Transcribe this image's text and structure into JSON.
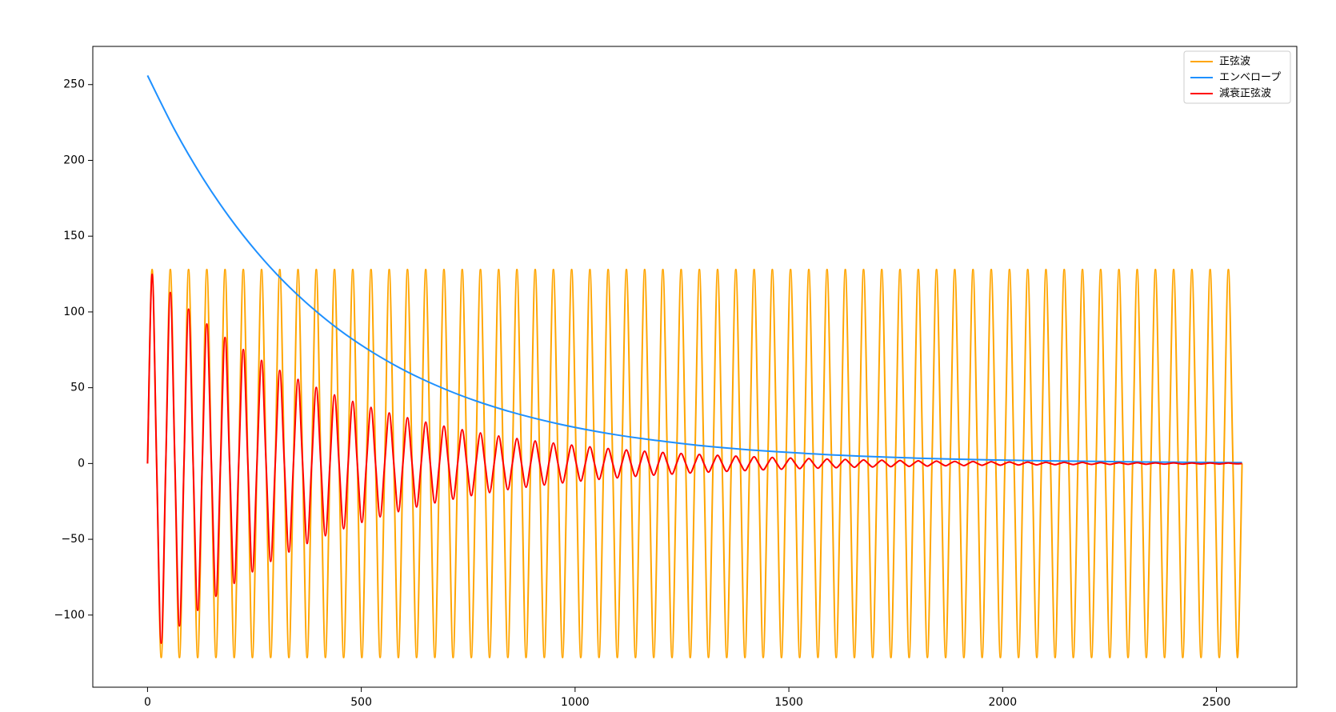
{
  "chart_data": {
    "type": "line",
    "xlim": [
      -128,
      2688
    ],
    "ylim": [
      -147.6,
      275.2
    ],
    "xticks": [
      0,
      500,
      1000,
      1500,
      2000,
      2500
    ],
    "yticks": [
      {
        "value": -100,
        "label": "−100"
      },
      {
        "value": -50,
        "label": "−50"
      },
      0,
      50,
      100,
      150,
      200,
      250
    ],
    "legend": "upper right",
    "series": [
      {
        "name": "正弦波",
        "color": "#ffa500",
        "x": [
          0,
          10.7,
          21.3,
          32,
          42.7,
          53.3,
          64,
          74.7,
          85.3,
          96,
          106.7,
          117.3,
          128,
          138.7,
          149.3,
          160,
          170.7,
          181.3,
          192,
          202.7,
          213.3,
          224,
          234.7,
          245.3,
          256,
          266.7,
          277.3,
          288,
          298.7,
          309.3,
          320,
          330.7,
          341.3,
          352,
          362.7,
          373.3,
          384,
          394.7,
          405.3,
          416,
          426.7,
          437.3,
          448,
          458.7,
          469.3,
          480,
          490.7,
          501.3,
          512,
          522.7,
          533.3,
          544,
          554.7,
          565.3,
          576,
          586.7,
          597.3,
          608,
          618.7,
          629.3,
          640,
          650.7,
          661.3,
          672,
          682.7,
          693.3,
          704,
          714.7,
          725.3,
          736,
          746.7,
          757.3,
          768,
          778.7,
          789.3,
          800,
          810.7,
          821.3,
          832,
          842.7,
          853.3,
          864,
          874.7,
          885.3,
          896,
          906.7,
          917.3,
          928,
          938.7,
          949.3,
          960,
          970.7,
          981.3,
          992,
          1002.7,
          1013.3,
          1024,
          1034.7,
          1045.3,
          1056,
          1066.7,
          1077.3,
          1088,
          1098.7,
          1109.3,
          1120,
          1130.7,
          1141.3,
          1152,
          1162.7,
          1173.3,
          1184,
          1194.7,
          1205.3,
          1216,
          1226.7,
          1237.3,
          1248,
          1258.7,
          1269.3,
          1280,
          1290.7,
          1301.3,
          1312,
          1322.7,
          1333.3,
          1344,
          1354.7,
          1365.3,
          1376,
          1386.7,
          1397.3,
          1408,
          1418.7,
          1429.3,
          1440,
          1450.7,
          1461.3,
          1472,
          1482.7,
          1493.3,
          1504,
          1514.7,
          1525.3,
          1536,
          1546.7,
          1557.3,
          1568,
          1578.7,
          1589.3,
          1600,
          1610.7,
          1621.3,
          1632,
          1642.7,
          1653.3,
          1664,
          1674.7,
          1685.3,
          1696,
          1706.7,
          1717.3,
          1728,
          1738.7,
          1749.3,
          1760,
          1770.7,
          1781.3,
          1792,
          1802.7,
          1813.3,
          1824,
          1834.7,
          1845.3,
          1856,
          1866.7,
          1877.3,
          1888,
          1898.7,
          1909.3,
          1920,
          1930.7,
          1941.3,
          1952,
          1962.7,
          1973.3,
          1984,
          1994.7,
          2005.3,
          2016,
          2026.7,
          2037.3,
          2048,
          2058.7,
          2069.3,
          2080,
          2090.7,
          2101.3,
          2112,
          2122.7,
          2133.3,
          2144,
          2154.7,
          2165.3,
          2176,
          2186.7,
          2197.3,
          2208,
          2218.7,
          2229.3,
          2240,
          2250.7,
          2261.3,
          2272,
          2282.7,
          2293.3,
          2304,
          2314.7,
          2325.3,
          2336,
          2346.7,
          2357.3,
          2368,
          2378.7,
          2389.3,
          2400,
          2410.7,
          2421.3,
          2432,
          2442.7,
          2453.3,
          2464,
          2474.7,
          2485.3,
          2496,
          2506.7,
          2517.3,
          2528,
          2538.7,
          2549.3,
          2560
        ],
        "values": [
          0,
          128,
          0,
          -128,
          0,
          128,
          0,
          -128,
          0,
          128,
          0,
          -128,
          0,
          128,
          0,
          -128,
          0,
          128,
          0,
          -128,
          0,
          128,
          0,
          -128,
          0,
          128,
          0,
          -128,
          0,
          128,
          0,
          -128,
          0,
          128,
          0,
          -128,
          0,
          128,
          0,
          -128,
          0,
          128,
          0,
          -128,
          0,
          128,
          0,
          -128,
          0,
          128,
          0,
          -128,
          0,
          128,
          0,
          -128,
          0,
          128,
          0,
          -128,
          0,
          128,
          0,
          -128,
          0,
          128,
          0,
          -128,
          0,
          128,
          0,
          -128,
          0,
          128,
          0,
          -128,
          0,
          128,
          0,
          -128,
          0,
          128,
          0,
          -128,
          0,
          128,
          0,
          -128,
          0,
          128,
          0,
          -128,
          0,
          128,
          0,
          -128,
          0,
          128,
          0,
          -128,
          0,
          128,
          0,
          -128,
          0,
          128,
          0,
          -128,
          0,
          128,
          0,
          -128,
          0,
          128,
          0,
          -128,
          0,
          128,
          0,
          -128,
          0,
          128,
          0,
          -128,
          0,
          128,
          0,
          -128,
          0,
          128,
          0,
          -128,
          0,
          128,
          0,
          -128,
          0,
          128,
          0,
          -128,
          0,
          128,
          0,
          -128,
          0,
          128,
          0,
          -128,
          0,
          128,
          0,
          -128,
          0,
          128,
          0,
          -128,
          0,
          128,
          0,
          -128,
          0,
          128,
          0,
          -128,
          0,
          128,
          0,
          -128,
          0,
          128,
          0,
          -128,
          0,
          128,
          0,
          -128,
          0,
          128,
          0,
          -128,
          0,
          128,
          0,
          -128,
          0,
          128,
          0,
          -128,
          0,
          128,
          0,
          -128,
          0,
          128,
          0,
          -128,
          0,
          128,
          0,
          -128,
          0,
          128,
          0,
          -128,
          0,
          128,
          0,
          -128,
          0,
          128,
          0,
          -128,
          0,
          128,
          0,
          -128,
          0,
          128,
          0,
          -128,
          0,
          128,
          0,
          -128,
          0,
          128,
          0,
          -128,
          0,
          128,
          0,
          -128,
          0,
          128,
          0,
          -128,
          0,
          128,
          0,
          -128,
          0
        ]
      },
      {
        "name": "エンベロープ",
        "color": "#1e90ff",
        "x": [
          0,
          64,
          128,
          192,
          256,
          320,
          384,
          448,
          512,
          576,
          640,
          704,
          768,
          832,
          896,
          960,
          1024,
          1088,
          1152,
          1216,
          1280,
          1344,
          1408,
          1472,
          1536,
          1600,
          1664,
          1728,
          1792,
          1856,
          1920,
          1984,
          2048,
          2112,
          2176,
          2240,
          2304,
          2368,
          2432,
          2496,
          2560
        ],
        "values": [
          256,
          219.9,
          188.9,
          162.3,
          139.4,
          119.7,
          102.9,
          88.3,
          75.9,
          65.2,
          56,
          48.1,
          41.3,
          35.5,
          30.5,
          26.2,
          22.5,
          19.3,
          16.6,
          14.3,
          12.2,
          10.5,
          9,
          7.8,
          6.7,
          5.7,
          4.9,
          4.2,
          3.6,
          3.1,
          2.7,
          2.3,
          2,
          1.7,
          1.5,
          1.3,
          1.1,
          0.9,
          0.8,
          0.7,
          0.6
        ]
      },
      {
        "name": "減衰正弦波",
        "color": "#ff0000",
        "x": [
          0,
          10.7,
          21.3,
          32,
          42.7,
          53.3,
          64,
          74.7,
          85.3,
          96,
          106.7,
          117.3,
          128,
          138.7,
          149.3,
          160,
          170.7,
          181.3,
          192,
          202.7,
          213.3,
          224,
          234.7,
          245.3,
          256,
          266.7,
          277.3,
          288,
          298.7,
          309.3,
          320,
          330.7,
          341.3,
          352,
          362.7,
          373.3,
          384,
          394.7,
          405.3,
          416,
          426.7,
          437.3,
          448,
          458.7,
          469.3,
          480,
          490.7,
          501.3,
          512,
          522.7,
          533.3,
          544,
          554.7,
          565.3,
          576,
          586.7,
          597.3,
          608,
          618.7,
          629.3,
          640,
          650.7,
          661.3,
          672,
          682.7,
          693.3,
          704,
          714.7,
          725.3,
          736,
          746.7,
          757.3,
          768,
          778.7,
          789.3,
          800,
          810.7,
          821.3,
          832,
          842.7,
          853.3,
          864,
          874.7,
          885.3,
          896,
          906.7,
          917.3,
          928,
          938.7,
          949.3,
          960,
          970.7,
          981.3,
          992,
          1002.7,
          1013.3,
          1024,
          1034.7,
          1045.3,
          1056,
          1066.7,
          1077.3,
          1088,
          1098.7,
          1109.3,
          1120,
          1130.7,
          1141.3,
          1152,
          1162.7,
          1173.3,
          1184,
          1194.7,
          1205.3,
          1216,
          1226.7,
          1237.3,
          1248,
          1258.7,
          1269.3,
          1280,
          1290.7,
          1301.3,
          1312,
          1322.7,
          1333.3,
          1344,
          1354.7,
          1365.3,
          1376,
          1386.7,
          1397.3,
          1408,
          1418.7,
          1429.3,
          1440,
          1450.7,
          1461.3,
          1472,
          1482.7,
          1493.3,
          1504,
          1514.7,
          1525.3,
          1536,
          1546.7,
          1557.3,
          1568,
          1578.7,
          1589.3,
          1600,
          1610.7,
          1621.3,
          1632,
          1642.7,
          1653.3,
          1664,
          1674.7,
          1685.3,
          1696,
          1706.7,
          1717.3,
          1728,
          1738.7,
          1749.3,
          1760,
          1770.7,
          1781.3,
          1792,
          1802.7,
          1813.3,
          1824,
          1834.7,
          1845.3,
          1856,
          1866.7,
          1877.3,
          1888,
          1898.7,
          1909.3,
          1920,
          1930.7,
          1941.3,
          1952,
          1962.7,
          1973.3,
          1984,
          1994.7,
          2005.3,
          2016,
          2026.7,
          2037.3,
          2048,
          2058.7,
          2069.3,
          2080,
          2090.7,
          2101.3,
          2112,
          2122.7,
          2133.3,
          2144,
          2154.7,
          2165.3,
          2176,
          2186.7,
          2197.3,
          2208,
          2218.7,
          2229.3,
          2240,
          2250.7,
          2261.3,
          2272,
          2282.7,
          2293.3,
          2304,
          2314.7,
          2325.3,
          2336,
          2346.7,
          2357.3,
          2368,
          2378.7,
          2389.3,
          2400,
          2410.7,
          2421.3,
          2432,
          2442.7,
          2453.3,
          2464,
          2474.7,
          2485.3,
          2496,
          2506.7,
          2517.3,
          2528,
          2538.7,
          2549.3,
          2560
        ],
        "values": [
          0,
          124.8,
          0,
          -118.6,
          0,
          112.8,
          0,
          -107.2,
          0,
          101.9,
          0,
          -96.9,
          0,
          92.1,
          0,
          -87.6,
          0,
          83.2,
          0,
          -79.1,
          0,
          75.2,
          0,
          -71.5,
          0,
          68,
          0,
          -64.6,
          0,
          61.4,
          0,
          -58.4,
          0,
          55.5,
          0,
          -52.8,
          0,
          50.2,
          0,
          -47.7,
          0,
          45.3,
          0,
          -43.1,
          0,
          41,
          0,
          -38.9,
          0,
          37,
          0,
          -35.2,
          0,
          33.4,
          0,
          -31.8,
          0,
          30.2,
          0,
          -28.7,
          0,
          27.3,
          0,
          -26,
          0,
          24.7,
          0,
          -23.5,
          0,
          22.3,
          0,
          -21.2,
          0,
          20.2,
          0,
          -19.2,
          0,
          18.2,
          0,
          -17.3,
          0,
          16.5,
          0,
          -15.7,
          0,
          14.9,
          0,
          -14.2,
          0,
          13.5,
          0,
          -12.8,
          0,
          12.2,
          0,
          -11.6,
          0,
          11,
          0,
          -10.5,
          0,
          9.9,
          0,
          -9.5,
          0,
          9,
          0,
          -8.5,
          0,
          8.1,
          0,
          -7.7,
          0,
          7.3,
          0,
          -7,
          0,
          6.6,
          0,
          -6.3,
          0,
          6,
          0,
          -5.7,
          0,
          5.4,
          0,
          -5.2,
          0,
          4.9,
          0,
          -4.7,
          0,
          4.4,
          0,
          -4.2,
          0,
          4,
          0,
          -3.8,
          0,
          3.6,
          0,
          -3.4,
          0,
          3.3,
          0,
          -3.1,
          0,
          3,
          0,
          -2.8,
          0,
          2.7,
          0,
          -2.5,
          0,
          2.4,
          0,
          -2.3,
          0,
          2.2,
          0,
          -2.1,
          0,
          2,
          0,
          -1.9,
          0,
          1.8,
          0,
          -1.7,
          0,
          1.6,
          0,
          -1.5,
          0,
          1.4,
          0,
          -1.4,
          0,
          1.3,
          0,
          -1.2,
          0,
          1.2,
          0,
          -1.1,
          0,
          1,
          0,
          -1,
          0,
          0.9,
          0,
          -0.9,
          0,
          0.8,
          0,
          -0.8,
          0,
          0.8,
          0,
          -0.7,
          0,
          0.7,
          0,
          -0.6,
          0,
          0.6,
          0,
          -0.6,
          0,
          0.5,
          0,
          -0.5,
          0,
          0.5,
          0,
          -0.5,
          0,
          0.4,
          0,
          -0.4,
          0,
          0.4,
          0,
          -0.4,
          0,
          0.3,
          0,
          -0.3,
          0,
          0.3,
          0,
          -0.3,
          0,
          0.3,
          0,
          -0.2,
          0
        ]
      }
    ]
  }
}
